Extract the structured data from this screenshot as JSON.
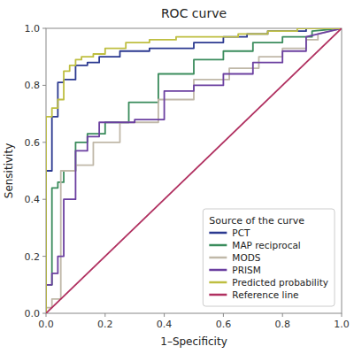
{
  "chart_data": {
    "type": "line",
    "title": "ROC curve",
    "xlabel": "1–Specificity",
    "ylabel": "Sensitivity",
    "xlim": [
      0.0,
      1.0
    ],
    "ylim": [
      0.0,
      1.0
    ],
    "xticks": [
      {
        "value": 0.0,
        "label": "0.0"
      },
      0.2,
      0.4,
      0.6,
      0.8,
      {
        "value": 1.0,
        "label": "1.0"
      }
    ],
    "yticks": [
      {
        "value": 0.0,
        "label": "0.0"
      },
      0.2,
      0.4,
      0.6,
      0.8,
      {
        "value": 1.0,
        "label": "1.0"
      }
    ],
    "grid": false,
    "legend": "lower right",
    "legend_title": "Source of the curve",
    "series": [
      {
        "name": "PCT",
        "color": "#2B3990",
        "x": [
          0.0,
          0.0,
          0.02,
          0.02,
          0.04,
          0.04,
          0.06,
          0.06,
          0.1,
          0.1,
          0.14,
          0.14,
          0.18,
          0.18,
          0.25,
          0.25,
          0.35,
          0.35,
          0.5,
          0.5,
          0.6,
          0.6,
          0.68,
          0.68,
          0.75,
          0.75,
          0.82,
          0.82,
          0.88,
          0.88,
          0.92,
          0.92,
          1.0
        ],
        "values": [
          0.0,
          0.5,
          0.5,
          0.69,
          0.69,
          0.81,
          0.81,
          0.82,
          0.82,
          0.87,
          0.87,
          0.88,
          0.88,
          0.9,
          0.9,
          0.92,
          0.92,
          0.93,
          0.93,
          0.95,
          0.95,
          0.97,
          0.97,
          0.98,
          0.98,
          0.99,
          0.99,
          0.99,
          0.99,
          1.0,
          1.0,
          1.0,
          1.0
        ]
      },
      {
        "name": "MAP reciprocal",
        "color": "#3A8C5C",
        "x": [
          0.0,
          0.0,
          0.02,
          0.02,
          0.04,
          0.04,
          0.06,
          0.06,
          0.1,
          0.1,
          0.14,
          0.14,
          0.2,
          0.2,
          0.28,
          0.28,
          0.38,
          0.38,
          0.5,
          0.5,
          0.6,
          0.6,
          0.7,
          0.7,
          0.8,
          0.8,
          0.9,
          0.9,
          1.0
        ],
        "values": [
          0.0,
          0.1,
          0.1,
          0.44,
          0.44,
          0.46,
          0.46,
          0.5,
          0.5,
          0.6,
          0.6,
          0.63,
          0.63,
          0.67,
          0.67,
          0.74,
          0.74,
          0.84,
          0.84,
          0.89,
          0.89,
          0.92,
          0.92,
          0.95,
          0.95,
          0.97,
          0.97,
          0.99,
          1.0
        ]
      },
      {
        "name": "MODS",
        "color": "#C0B8A8",
        "x": [
          0.0,
          0.0,
          0.02,
          0.02,
          0.05,
          0.05,
          0.1,
          0.1,
          0.16,
          0.16,
          0.25,
          0.25,
          0.38,
          0.38,
          0.5,
          0.5,
          0.62,
          0.62,
          0.72,
          0.72,
          0.8,
          0.8,
          0.88,
          0.88,
          0.92,
          0.92,
          1.0
        ],
        "values": [
          0.0,
          0.02,
          0.02,
          0.05,
          0.05,
          0.5,
          0.5,
          0.52,
          0.52,
          0.6,
          0.6,
          0.67,
          0.67,
          0.75,
          0.75,
          0.82,
          0.82,
          0.86,
          0.86,
          0.9,
          0.9,
          0.93,
          0.93,
          0.96,
          0.96,
          0.98,
          1.0
        ]
      },
      {
        "name": "PRISM",
        "color": "#6B3FA0",
        "x": [
          0.0,
          0.0,
          0.02,
          0.02,
          0.04,
          0.04,
          0.06,
          0.06,
          0.1,
          0.1,
          0.14,
          0.14,
          0.18,
          0.18,
          0.24,
          0.24,
          0.3,
          0.3,
          0.4,
          0.4,
          0.5,
          0.5,
          0.6,
          0.6,
          0.7,
          0.7,
          0.8,
          0.8,
          0.88,
          0.88,
          1.0
        ],
        "values": [
          0.0,
          0.1,
          0.1,
          0.14,
          0.14,
          0.2,
          0.2,
          0.4,
          0.4,
          0.57,
          0.57,
          0.62,
          0.62,
          0.67,
          0.67,
          0.67,
          0.67,
          0.68,
          0.68,
          0.78,
          0.78,
          0.8,
          0.8,
          0.84,
          0.84,
          0.88,
          0.88,
          0.92,
          0.92,
          0.97,
          1.0
        ]
      },
      {
        "name": "Predicted probability",
        "color": "#BEBE40",
        "x": [
          0.0,
          0.0,
          0.02,
          0.02,
          0.04,
          0.04,
          0.06,
          0.06,
          0.08,
          0.08,
          0.1,
          0.1,
          0.12,
          0.12,
          0.16,
          0.16,
          0.2,
          0.2,
          0.27,
          0.27,
          0.35,
          0.35,
          0.44,
          0.44,
          0.55,
          0.55,
          0.65,
          0.65,
          0.75,
          0.75,
          0.85,
          0.85,
          1.0
        ],
        "values": [
          0.0,
          0.69,
          0.69,
          0.72,
          0.72,
          0.75,
          0.75,
          0.85,
          0.85,
          0.87,
          0.87,
          0.89,
          0.89,
          0.9,
          0.9,
          0.91,
          0.91,
          0.93,
          0.93,
          0.95,
          0.95,
          0.96,
          0.96,
          0.97,
          0.97,
          0.97,
          0.97,
          0.98,
          0.98,
          0.99,
          0.99,
          1.0,
          1.0
        ]
      },
      {
        "name": "Reference line",
        "color": "#B03060",
        "x": [
          0.0,
          1.0
        ],
        "values": [
          0.0,
          1.0
        ]
      }
    ]
  }
}
